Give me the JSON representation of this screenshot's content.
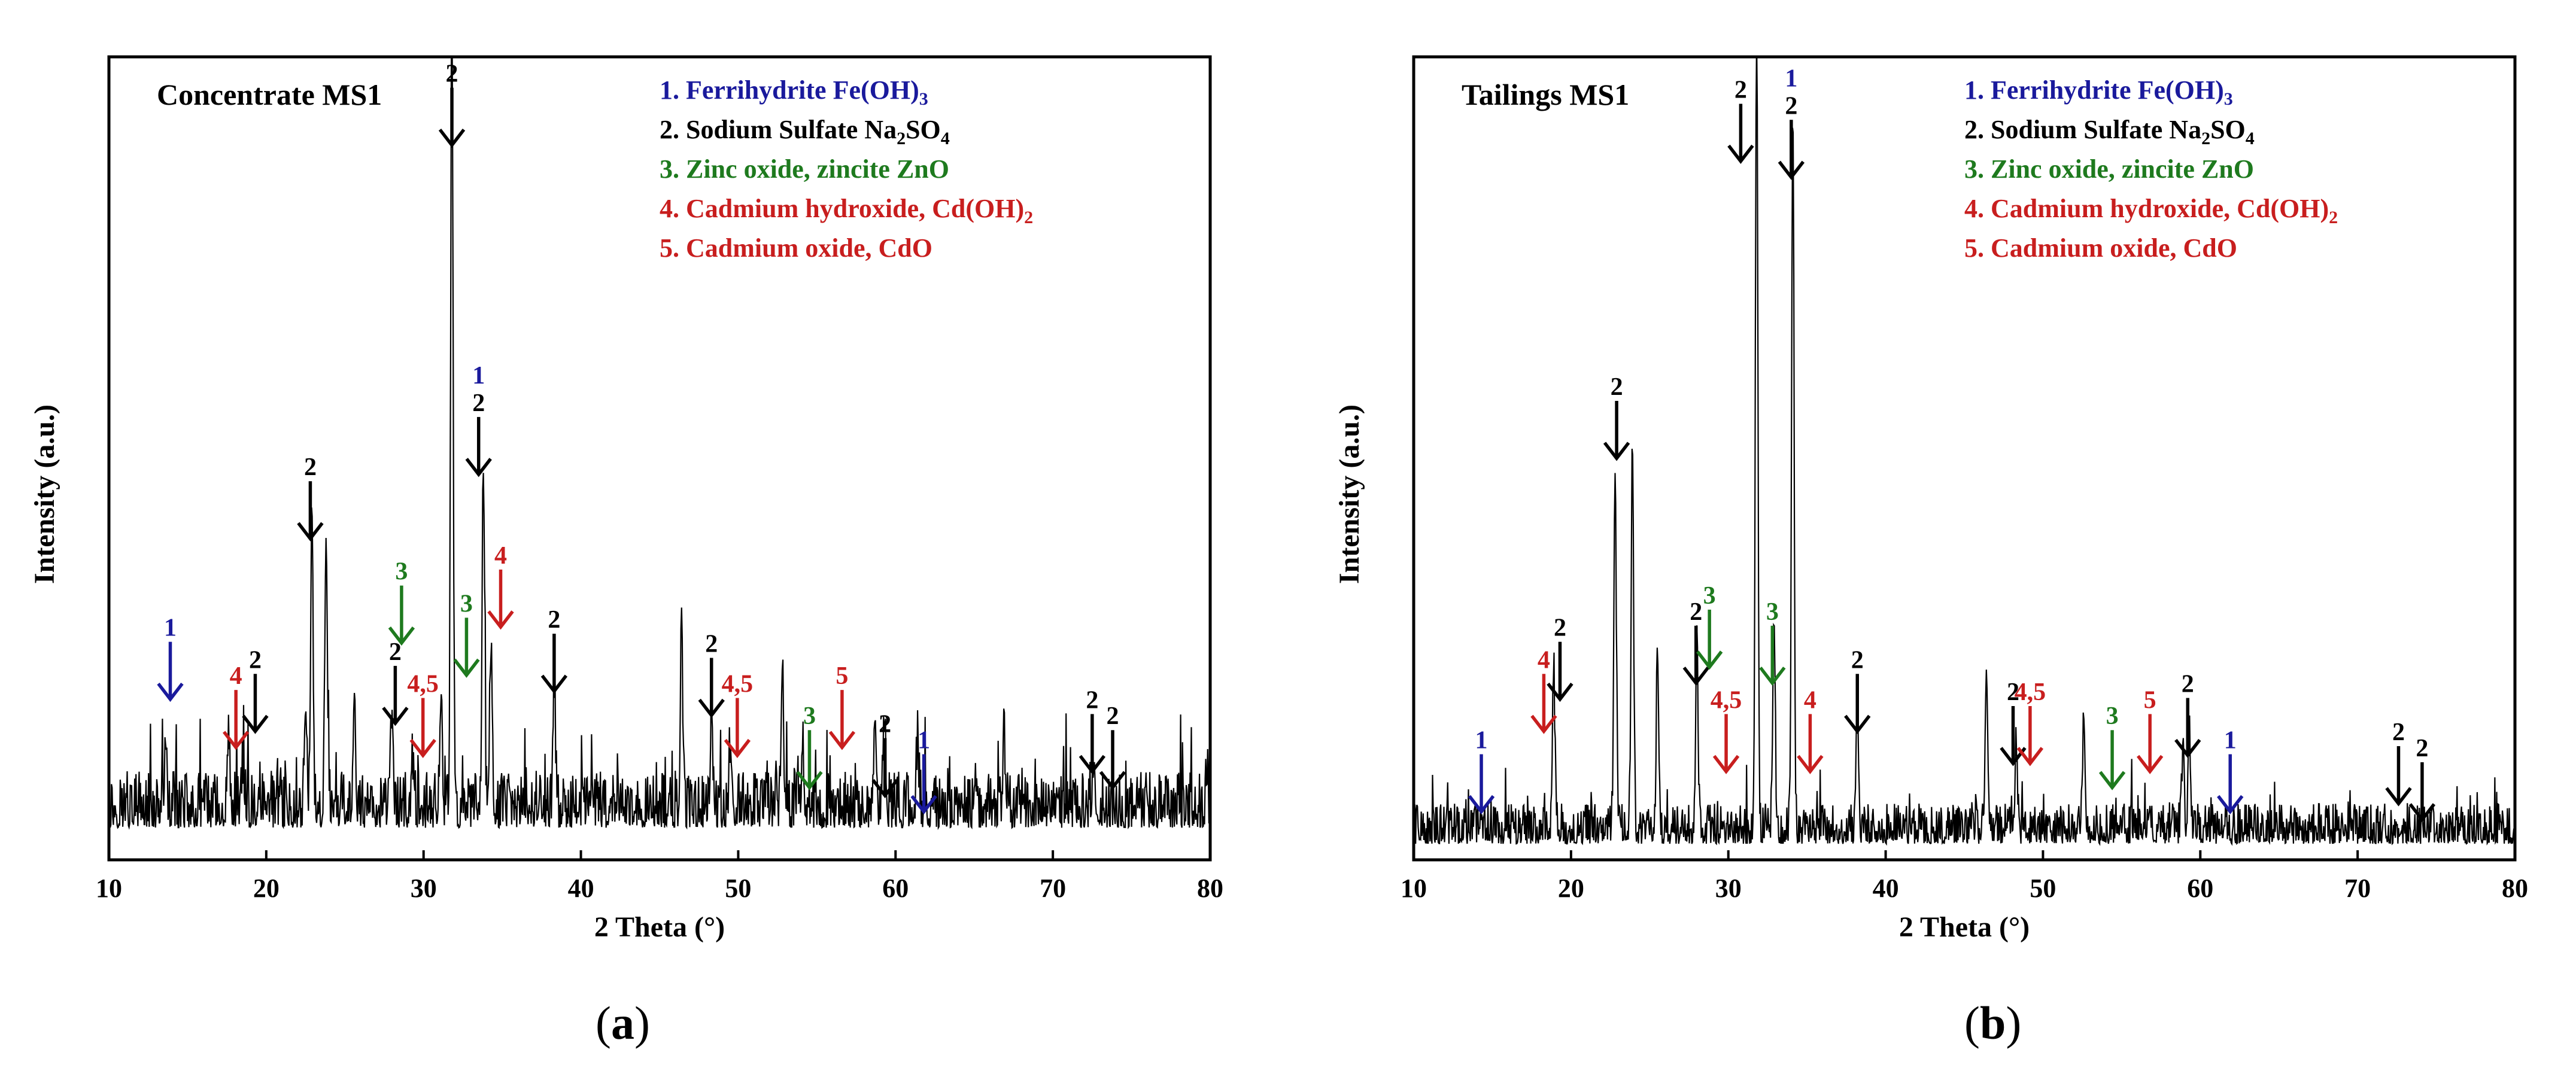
{
  "chart_data": [
    {
      "type": "line",
      "panel_label": "a",
      "title": "Concentrate MS1",
      "xlabel": "2 Theta (°)",
      "ylabel": "Intensity (a.u.)",
      "xlim": [
        10,
        80
      ],
      "ylim": [
        0,
        100
      ],
      "xticks": [
        "10",
        "20",
        "30",
        "40",
        "50",
        "60",
        "70",
        "80"
      ],
      "legend": [
        {
          "num": "1.",
          "text": "Ferrihydrite Fe(OH)",
          "sub": "3",
          "color": "#1a1a9c"
        },
        {
          "num": "2.",
          "text": "Sodium Sulfate Na",
          "mid": "2",
          "tail": "SO",
          "sub": "4",
          "color": "#000000"
        },
        {
          "num": "3.",
          "text": "Zinc oxide, zincite ZnO",
          "sub": "",
          "color": "#1e7a1e"
        },
        {
          "num": "4.",
          "text": "Cadmium hydroxide, Cd(OH)",
          "sub": "2",
          "color": "#c81e1e"
        },
        {
          "num": "5.",
          "text": "Cadmium oxide, CdO",
          "sub": "",
          "color": "#c81e1e"
        }
      ],
      "peaks": [
        {
          "x": 13.6,
          "h": 7
        },
        {
          "x": 17.6,
          "h": 10
        },
        {
          "x": 18.5,
          "h": 4
        },
        {
          "x": 22.5,
          "h": 14
        },
        {
          "x": 22.9,
          "h": 37
        },
        {
          "x": 23.8,
          "h": 35
        },
        {
          "x": 25.6,
          "h": 16
        },
        {
          "x": 28.0,
          "h": 13
        },
        {
          "x": 29.3,
          "h": 6
        },
        {
          "x": 31.1,
          "h": 13
        },
        {
          "x": 31.8,
          "h": 100
        },
        {
          "x": 33.8,
          "h": 42
        },
        {
          "x": 34.3,
          "h": 20
        },
        {
          "x": 38.3,
          "h": 16
        },
        {
          "x": 46.4,
          "h": 21
        },
        {
          "x": 48.3,
          "h": 12
        },
        {
          "x": 49.5,
          "h": 8
        },
        {
          "x": 52.8,
          "h": 19
        },
        {
          "x": 54.1,
          "h": 8
        },
        {
          "x": 58.7,
          "h": 13
        },
        {
          "x": 59.3,
          "h": 12
        },
        {
          "x": 61.4,
          "h": 8
        },
        {
          "x": 66.9,
          "h": 9
        },
        {
          "x": 72.6,
          "h": 6
        }
      ],
      "baseline": 4,
      "noise": 7,
      "annotations": [
        {
          "x": 13.9,
          "y": 20,
          "labels": [
            {
              "t": "1",
              "c": "#1a1a9c"
            }
          ],
          "color": "#1a1a9c"
        },
        {
          "x": 18.3,
          "y": 14,
          "labels": [
            {
              "t": "4",
              "c": "#c81e1e"
            }
          ],
          "color": "#c81e1e",
          "dx": -6
        },
        {
          "x": 19.3,
          "y": 16,
          "labels": [
            {
              "t": "2",
              "c": "#000000"
            }
          ],
          "color": "#000000"
        },
        {
          "x": 22.8,
          "y": 40,
          "labels": [
            {
              "t": "2",
              "c": "#000000"
            }
          ],
          "color": "#000000"
        },
        {
          "x": 28.2,
          "y": 17,
          "labels": [
            {
              "t": "2",
              "c": "#000000"
            }
          ],
          "color": "#000000"
        },
        {
          "x": 29.2,
          "y": 13,
          "labels": [
            {
              "t": "4,5",
              "c": "#c81e1e"
            }
          ],
          "color": "#c81e1e",
          "dx": 20
        },
        {
          "x": 28.6,
          "y": 27,
          "labels": [
            {
              "t": "3",
              "c": "#1e7a1e"
            }
          ],
          "color": "#1e7a1e"
        },
        {
          "x": 31.8,
          "y": 89,
          "labels": [
            {
              "t": "2",
              "c": "#000000"
            }
          ],
          "color": "#000000"
        },
        {
          "x": 32.5,
          "y": 23,
          "labels": [
            {
              "t": "3",
              "c": "#1e7a1e"
            }
          ],
          "color": "#1e7a1e",
          "dx": 6
        },
        {
          "x": 33.5,
          "y": 48,
          "labels": [
            {
              "t": "2",
              "c": "#000000"
            },
            {
              "t": "1",
              "c": "#1a1a9c"
            }
          ],
          "color": "#000000"
        },
        {
          "x": 34.9,
          "y": 29,
          "labels": [
            {
              "t": "4",
              "c": "#c81e1e"
            }
          ],
          "color": "#c81e1e"
        },
        {
          "x": 38.3,
          "y": 21,
          "labels": [
            {
              "t": "2",
              "c": "#000000"
            }
          ],
          "color": "#000000"
        },
        {
          "x": 48.3,
          "y": 18,
          "labels": [
            {
              "t": "2",
              "c": "#000000"
            }
          ],
          "color": "#000000"
        },
        {
          "x": 48.8,
          "y": 13,
          "labels": [
            {
              "t": "4,5",
              "c": "#c81e1e"
            }
          ],
          "color": "#c81e1e",
          "dx": 30
        },
        {
          "x": 54.3,
          "y": 9,
          "labels": [
            {
              "t": "3",
              "c": "#1e7a1e"
            }
          ],
          "color": "#1e7a1e",
          "dx": 6
        },
        {
          "x": 56.6,
          "y": 14,
          "labels": [
            {
              "t": "5",
              "c": "#c81e1e"
            }
          ],
          "color": "#c81e1e"
        },
        {
          "x": 59.1,
          "y": 8,
          "labels": [
            {
              "t": "2",
              "c": "#000000"
            }
          ],
          "color": "#000000",
          "dx": 6
        },
        {
          "x": 61.8,
          "y": 6,
          "labels": [
            {
              "t": "1",
              "c": "#1a1a9c"
            }
          ],
          "color": "#1a1a9c"
        },
        {
          "x": 72.5,
          "y": 11,
          "labels": [
            {
              "t": "2",
              "c": "#000000"
            }
          ],
          "color": "#000000"
        },
        {
          "x": 73.8,
          "y": 9,
          "labels": [
            {
              "t": "2",
              "c": "#000000"
            }
          ],
          "color": "#000000"
        }
      ]
    },
    {
      "type": "line",
      "panel_label": "b",
      "title": "Tailings MS1",
      "xlabel": "2 Theta (°)",
      "ylabel": "Intensity (a.u.)",
      "xlim": [
        10,
        80
      ],
      "ylim": [
        0,
        100
      ],
      "xticks": [
        "10",
        "20",
        "30",
        "40",
        "50",
        "60",
        "70",
        "80"
      ],
      "legend": [
        {
          "num": "1.",
          "text": "Ferrihydrite Fe(OH)",
          "sub": "3",
          "color": "#1a1a9c"
        },
        {
          "num": "2.",
          "text": "Sodium Sulfate Na",
          "mid": "2",
          "tail": "SO",
          "sub": "4",
          "color": "#000000"
        },
        {
          "num": "3.",
          "text": "Zinc oxide, zincite ZnO",
          "sub": "",
          "color": "#1e7a1e"
        },
        {
          "num": "4.",
          "text": "Cadmium hydroxide, Cd(OH)",
          "sub": "2",
          "color": "#c81e1e"
        },
        {
          "num": "5.",
          "text": "Cadmium oxide, CdO",
          "sub": "",
          "color": "#c81e1e"
        }
      ],
      "peaks": [
        {
          "x": 18.9,
          "h": 19
        },
        {
          "x": 22.8,
          "h": 46
        },
        {
          "x": 23.9,
          "h": 48
        },
        {
          "x": 25.5,
          "h": 23
        },
        {
          "x": 28.0,
          "h": 24
        },
        {
          "x": 31.8,
          "h": 100
        },
        {
          "x": 32.9,
          "h": 28
        },
        {
          "x": 34.1,
          "h": 91
        },
        {
          "x": 38.2,
          "h": 16
        },
        {
          "x": 46.4,
          "h": 20
        },
        {
          "x": 48.3,
          "h": 11
        },
        {
          "x": 52.6,
          "h": 15
        },
        {
          "x": 58.9,
          "h": 10
        },
        {
          "x": 59.3,
          "h": 12
        }
      ],
      "baseline": 2,
      "noise": 5,
      "annotations": [
        {
          "x": 14.3,
          "y": 6,
          "labels": [
            {
              "t": "1",
              "c": "#1a1a9c"
            }
          ],
          "color": "#1a1a9c"
        },
        {
          "x": 18.5,
          "y": 16,
          "labels": [
            {
              "t": "4",
              "c": "#c81e1e"
            }
          ],
          "color": "#c81e1e",
          "dx": -6
        },
        {
          "x": 19.3,
          "y": 20,
          "labels": [
            {
              "t": "2",
              "c": "#000000"
            }
          ],
          "color": "#000000"
        },
        {
          "x": 22.9,
          "y": 50,
          "labels": [
            {
              "t": "2",
              "c": "#000000"
            }
          ],
          "color": "#000000"
        },
        {
          "x": 28.1,
          "y": 22,
          "labels": [
            {
              "t": "2",
              "c": "#000000"
            }
          ],
          "color": "#000000",
          "dx": -4
        },
        {
          "x": 28.8,
          "y": 24,
          "labels": [
            {
              "t": "3",
              "c": "#1e7a1e"
            }
          ],
          "color": "#1e7a1e"
        },
        {
          "x": 29.1,
          "y": 11,
          "labels": [
            {
              "t": "4,5",
              "c": "#c81e1e"
            }
          ],
          "color": "#c81e1e",
          "dx": 20
        },
        {
          "x": 31.7,
          "y": 87,
          "labels": [
            {
              "t": "2",
              "c": "#000000"
            }
          ],
          "color": "#000000",
          "dx": -24
        },
        {
          "x": 32.8,
          "y": 22,
          "labels": [
            {
              "t": "3",
              "c": "#1e7a1e"
            }
          ],
          "color": "#1e7a1e"
        },
        {
          "x": 34.0,
          "y": 85,
          "labels": [
            {
              "t": "2",
              "c": "#000000"
            },
            {
              "t": "1",
              "c": "#1a1a9c"
            }
          ],
          "color": "#000000"
        },
        {
          "x": 35.2,
          "y": 11,
          "labels": [
            {
              "t": "4",
              "c": "#c81e1e"
            }
          ],
          "color": "#c81e1e"
        },
        {
          "x": 38.2,
          "y": 16,
          "labels": [
            {
              "t": "2",
              "c": "#000000"
            }
          ],
          "color": "#000000"
        },
        {
          "x": 48.1,
          "y": 12,
          "labels": [
            {
              "t": "2",
              "c": "#000000"
            }
          ],
          "color": "#000000"
        },
        {
          "x": 48.8,
          "y": 12,
          "labels": [
            {
              "t": "4,5",
              "c": "#c81e1e"
            }
          ],
          "color": "#c81e1e",
          "dx": 10
        },
        {
          "x": 54.4,
          "y": 9,
          "labels": [
            {
              "t": "3",
              "c": "#1e7a1e"
            }
          ],
          "color": "#1e7a1e"
        },
        {
          "x": 56.8,
          "y": 11,
          "labels": [
            {
              "t": "5",
              "c": "#c81e1e"
            }
          ],
          "color": "#c81e1e"
        },
        {
          "x": 59.2,
          "y": 13,
          "labels": [
            {
              "t": "2",
              "c": "#000000"
            }
          ],
          "color": "#000000"
        },
        {
          "x": 61.9,
          "y": 6,
          "labels": [
            {
              "t": "1",
              "c": "#1a1a9c"
            }
          ],
          "color": "#1a1a9c"
        },
        {
          "x": 72.6,
          "y": 7,
          "labels": [
            {
              "t": "2",
              "c": "#000000"
            }
          ],
          "color": "#000000"
        },
        {
          "x": 74.1,
          "y": 5,
          "labels": [
            {
              "t": "2",
              "c": "#000000"
            }
          ],
          "color": "#000000"
        }
      ]
    }
  ]
}
